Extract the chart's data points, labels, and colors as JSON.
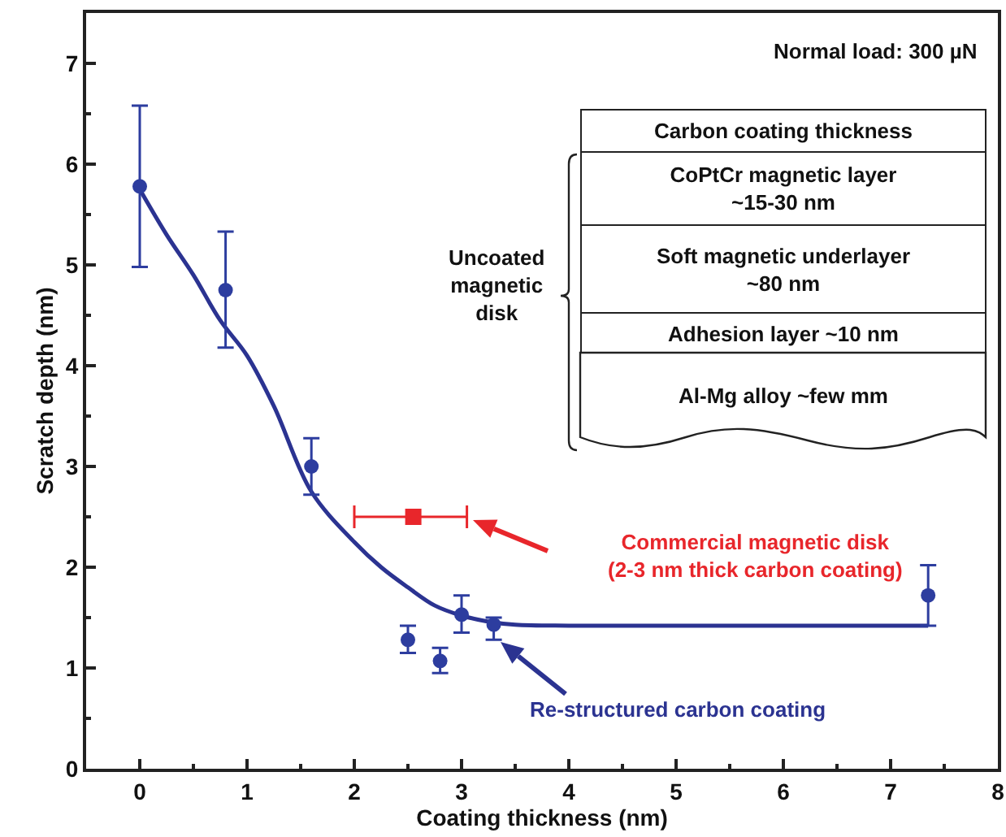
{
  "chart_data": {
    "type": "scatter",
    "xlabel": "Coating thickness (nm)",
    "ylabel": "Scratch depth (nm)",
    "xlim": [
      -0.5,
      8
    ],
    "xticks": [
      0,
      1,
      2,
      3,
      4,
      5,
      6,
      7,
      8
    ],
    "ylim": [
      0,
      7.5
    ],
    "yticks": [
      0,
      1,
      2,
      3,
      4,
      5,
      6,
      7
    ],
    "grid": false,
    "legend": false,
    "marker": "circle",
    "series": [
      {
        "type": "line",
        "color": "#2b3391",
        "x": [
          0,
          0.25,
          0.5,
          0.75,
          1,
          1.25,
          1.6,
          2,
          2.25,
          2.5,
          2.75,
          3,
          3.25,
          3.5,
          4,
          5,
          6,
          7.35
        ],
        "values": [
          5.75,
          5.3,
          4.9,
          4.45,
          4.1,
          3.6,
          2.75,
          2.25,
          2.0,
          1.8,
          1.62,
          1.52,
          1.46,
          1.43,
          1.42,
          1.42,
          1.42,
          1.42
        ],
        "marker": "none",
        "line_style": "solid"
      },
      {
        "type": "scatter",
        "color": "#2d3d9f",
        "x": [
          0,
          0.8,
          1.6,
          2.5,
          2.8,
          3.0,
          3.3,
          7.35
        ],
        "values": [
          5.78,
          4.75,
          3.0,
          1.28,
          1.07,
          1.53,
          1.43,
          1.72
        ],
        "errors": [
          [
            4.98,
            6.58
          ],
          [
            4.18,
            5.33
          ],
          [
            2.72,
            3.28
          ],
          [
            1.15,
            1.42
          ],
          [
            0.95,
            1.2
          ],
          [
            1.35,
            1.72
          ],
          [
            1.28,
            1.5
          ],
          [
            1.42,
            2.02
          ]
        ]
      },
      {
        "type": "scatter",
        "color": "#e8262b",
        "x": [
          2.55
        ],
        "values": [
          2.5
        ],
        "xerrors": [
          [
            2.0,
            3.05
          ]
        ],
        "marker": "square"
      }
    ],
    "annotations": [
      "Commercial magnetic disk\n(2-3 nm thick carbon coating)",
      "Re-structured carbon coating",
      "Normal load: 300 µN",
      "Uncoated magnetic disk",
      "Carbon coating thickness",
      "CoPtCr magnetic layer\n~15-30 nm",
      "Soft magnetic underlayer\n~80 nm",
      "Adhesion layer ~10 nm",
      "Al-Mg alloy ~few mm"
    ]
  }
}
